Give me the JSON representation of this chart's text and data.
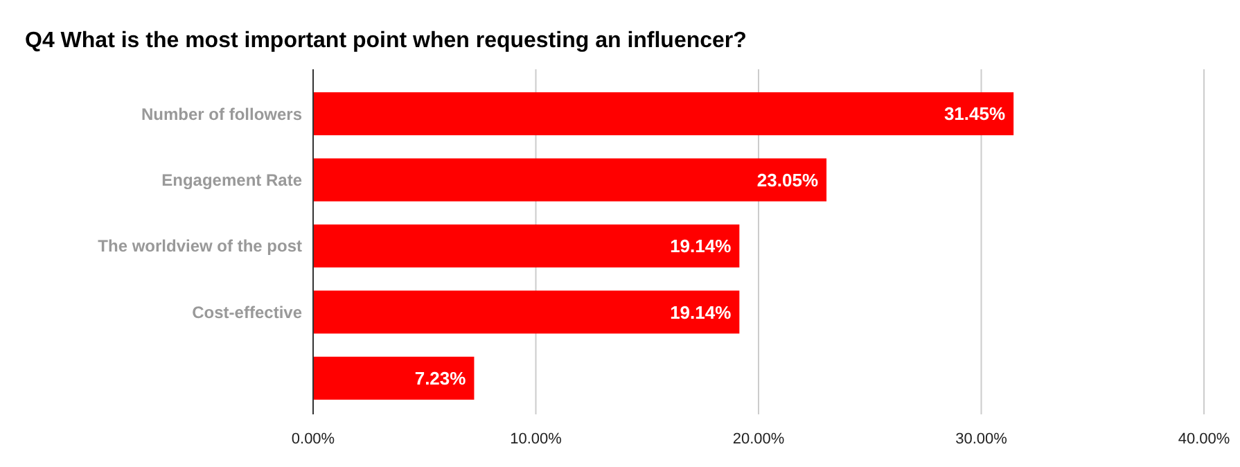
{
  "chart_data": {
    "type": "bar",
    "orientation": "horizontal",
    "title": "Q4 What is the most important point when requesting an influencer?",
    "categories": [
      "Number of followers",
      "Engagement Rate",
      "The worldview of the post",
      "Cost-effective",
      null
    ],
    "values": [
      31.45,
      23.05,
      19.14,
      19.14,
      7.23
    ],
    "value_labels": [
      "31.45%",
      "23.05%",
      "19.14%",
      "19.14%",
      "7.23%"
    ],
    "color": "#ff0000",
    "xlim": [
      0,
      40
    ],
    "xticks": [
      {
        "value": 0,
        "label": "0.00%"
      },
      {
        "value": 10,
        "label": "10.00%"
      },
      {
        "value": 20,
        "label": "20.00%"
      },
      {
        "value": 30,
        "label": "30.00%"
      },
      {
        "value": 40,
        "label": "40.00%"
      }
    ],
    "grid": "x"
  }
}
